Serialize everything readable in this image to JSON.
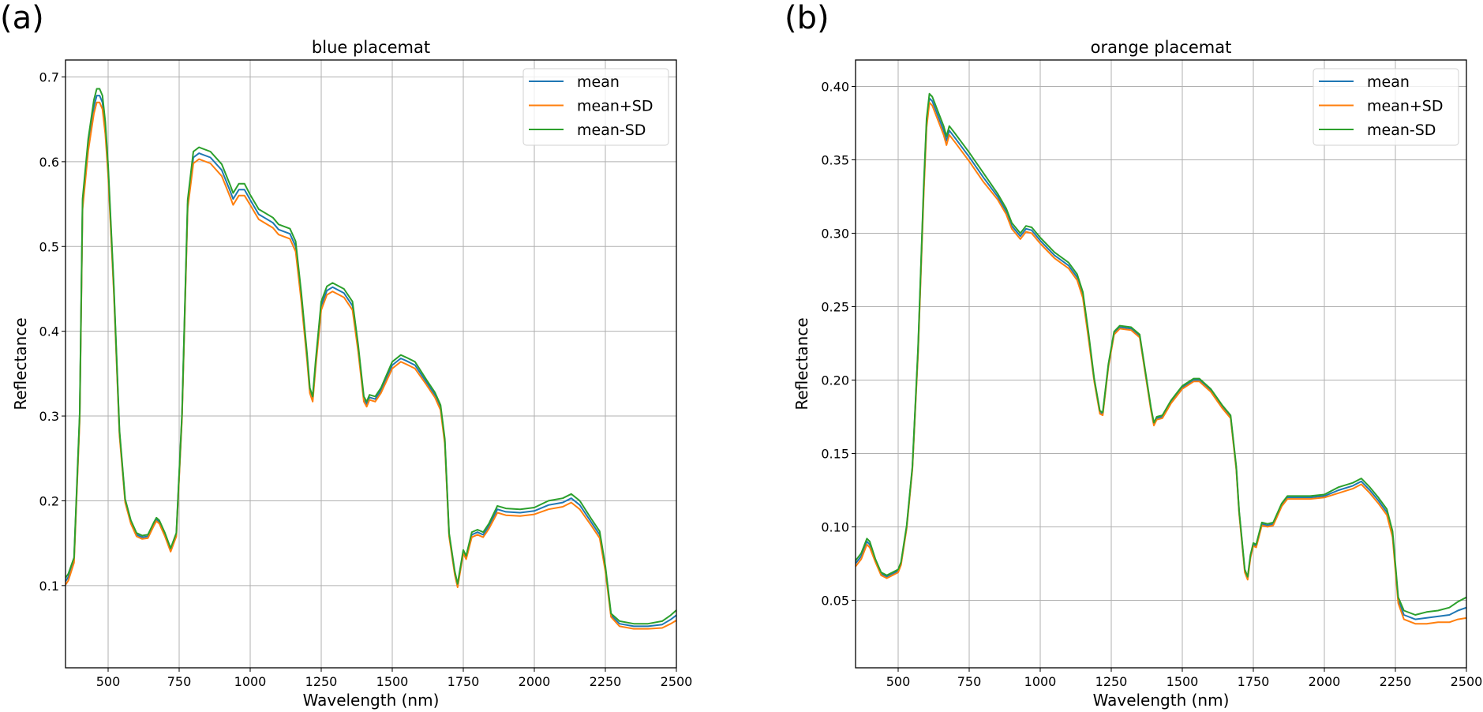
{
  "chart_data": [
    {
      "type": "line",
      "panel_label": "(a)",
      "title": "blue placemat",
      "xlabel": "Wavelength (nm)",
      "ylabel": "Reflectance",
      "xlim": [
        350,
        2500
      ],
      "ylim": [
        0.003,
        0.72
      ],
      "grid": true,
      "legend_placement": "top-right",
      "xticks": [
        500,
        750,
        1000,
        1250,
        1500,
        1750,
        2000,
        2250,
        2500
      ],
      "xtick_labels": [
        "500",
        "750",
        "1000",
        "1250",
        "1500",
        "1750",
        "2000",
        "2250",
        "2500"
      ],
      "yticks": [
        0.1,
        0.2,
        0.3,
        0.4,
        0.5,
        0.6,
        0.7
      ],
      "ytick_labels": [
        "0.1",
        "0.2",
        "0.3",
        "0.4",
        "0.5",
        "0.6",
        "0.7"
      ],
      "x": [
        350,
        360,
        380,
        400,
        410,
        430,
        450,
        460,
        470,
        480,
        490,
        500,
        520,
        540,
        560,
        580,
        600,
        620,
        640,
        660,
        670,
        680,
        700,
        720,
        740,
        760,
        780,
        800,
        820,
        860,
        900,
        930,
        940,
        960,
        980,
        1000,
        1030,
        1080,
        1100,
        1140,
        1160,
        1180,
        1200,
        1210,
        1220,
        1230,
        1250,
        1270,
        1290,
        1330,
        1360,
        1380,
        1400,
        1410,
        1420,
        1440,
        1460,
        1500,
        1530,
        1550,
        1580,
        1620,
        1650,
        1670,
        1685,
        1700,
        1720,
        1730,
        1740,
        1750,
        1760,
        1780,
        1800,
        1820,
        1840,
        1870,
        1900,
        1950,
        2000,
        2050,
        2100,
        2130,
        2160,
        2200,
        2230,
        2250,
        2270,
        2300,
        2350,
        2400,
        2450,
        2480,
        2500
      ],
      "mean": [
        0.105,
        0.11,
        0.13,
        0.3,
        0.55,
        0.62,
        0.665,
        0.678,
        0.678,
        0.67,
        0.64,
        0.59,
        0.45,
        0.28,
        0.2,
        0.175,
        0.16,
        0.157,
        0.158,
        0.172,
        0.178,
        0.175,
        0.16,
        0.142,
        0.16,
        0.3,
        0.55,
        0.605,
        0.61,
        0.605,
        0.59,
        0.565,
        0.556,
        0.567,
        0.567,
        0.555,
        0.538,
        0.528,
        0.52,
        0.515,
        0.5,
        0.44,
        0.37,
        0.33,
        0.32,
        0.36,
        0.43,
        0.448,
        0.452,
        0.445,
        0.43,
        0.38,
        0.32,
        0.314,
        0.322,
        0.32,
        0.33,
        0.36,
        0.368,
        0.365,
        0.36,
        0.34,
        0.325,
        0.31,
        0.27,
        0.16,
        0.115,
        0.1,
        0.12,
        0.14,
        0.133,
        0.16,
        0.163,
        0.16,
        0.17,
        0.19,
        0.187,
        0.186,
        0.188,
        0.195,
        0.198,
        0.203,
        0.195,
        0.175,
        0.16,
        0.12,
        0.065,
        0.055,
        0.052,
        0.052,
        0.054,
        0.06,
        0.065
      ],
      "sd": [
        0.004,
        0.004,
        0.003,
        0.004,
        0.006,
        0.007,
        0.008,
        0.008,
        0.008,
        0.008,
        0.007,
        0.006,
        0.004,
        0.003,
        0.002,
        0.002,
        0.002,
        0.002,
        0.002,
        0.002,
        0.002,
        0.002,
        0.002,
        0.002,
        0.002,
        0.003,
        0.005,
        0.007,
        0.007,
        0.007,
        0.007,
        0.007,
        0.007,
        0.007,
        0.007,
        0.006,
        0.006,
        0.006,
        0.006,
        0.006,
        0.006,
        0.005,
        0.004,
        0.003,
        0.003,
        0.004,
        0.005,
        0.005,
        0.005,
        0.005,
        0.005,
        0.004,
        0.003,
        0.003,
        0.003,
        0.003,
        0.003,
        0.004,
        0.004,
        0.004,
        0.004,
        0.003,
        0.003,
        0.003,
        0.003,
        0.002,
        0.002,
        0.002,
        0.002,
        0.002,
        0.002,
        0.003,
        0.003,
        0.003,
        0.003,
        0.004,
        0.004,
        0.004,
        0.004,
        0.005,
        0.005,
        0.005,
        0.005,
        0.004,
        0.004,
        0.003,
        0.002,
        0.003,
        0.003,
        0.003,
        0.004,
        0.005,
        0.006
      ],
      "series": [
        {
          "name": "mean",
          "color": "#1f77b4",
          "sd_factor": 0
        },
        {
          "name": "mean+SD",
          "color": "#ff7f0e",
          "sd_factor": -1
        },
        {
          "name": "mean-SD",
          "color": "#2ca02c",
          "sd_factor": 1
        }
      ]
    },
    {
      "type": "line",
      "panel_label": "(b)",
      "title": "orange placemat",
      "xlabel": "Wavelength (nm)",
      "ylabel": "Reflectance",
      "xlim": [
        350,
        2500
      ],
      "ylim": [
        0.004,
        0.418
      ],
      "grid": true,
      "legend_placement": "top-right",
      "xticks": [
        500,
        750,
        1000,
        1250,
        1500,
        1750,
        2000,
        2250,
        2500
      ],
      "xtick_labels": [
        "500",
        "750",
        "1000",
        "1250",
        "1500",
        "1750",
        "2000",
        "2250",
        "2500"
      ],
      "yticks": [
        0.05,
        0.1,
        0.15,
        0.2,
        0.25,
        0.3,
        0.35,
        0.4
      ],
      "ytick_labels": [
        "0.05",
        "0.10",
        "0.15",
        "0.20",
        "0.25",
        "0.30",
        "0.35",
        "0.40"
      ],
      "x": [
        350,
        370,
        390,
        400,
        420,
        440,
        460,
        480,
        500,
        510,
        530,
        550,
        570,
        590,
        600,
        610,
        620,
        640,
        660,
        670,
        680,
        700,
        750,
        800,
        850,
        880,
        900,
        930,
        950,
        970,
        1000,
        1050,
        1100,
        1130,
        1150,
        1170,
        1190,
        1210,
        1220,
        1240,
        1260,
        1280,
        1320,
        1350,
        1370,
        1390,
        1400,
        1410,
        1430,
        1460,
        1500,
        1540,
        1560,
        1600,
        1640,
        1670,
        1690,
        1700,
        1720,
        1730,
        1740,
        1750,
        1760,
        1780,
        1800,
        1820,
        1850,
        1870,
        1900,
        1950,
        2000,
        2050,
        2100,
        2130,
        2160,
        2190,
        2220,
        2240,
        2260,
        2280,
        2320,
        2360,
        2400,
        2440,
        2470,
        2500
      ],
      "mean": [
        0.075,
        0.08,
        0.09,
        0.088,
        0.077,
        0.068,
        0.066,
        0.068,
        0.07,
        0.075,
        0.1,
        0.14,
        0.22,
        0.33,
        0.375,
        0.392,
        0.39,
        0.38,
        0.37,
        0.363,
        0.37,
        0.365,
        0.352,
        0.338,
        0.325,
        0.315,
        0.305,
        0.298,
        0.303,
        0.302,
        0.295,
        0.285,
        0.278,
        0.27,
        0.258,
        0.23,
        0.2,
        0.178,
        0.177,
        0.21,
        0.232,
        0.236,
        0.235,
        0.23,
        0.205,
        0.18,
        0.17,
        0.174,
        0.175,
        0.185,
        0.195,
        0.2,
        0.2,
        0.193,
        0.182,
        0.175,
        0.14,
        0.11,
        0.07,
        0.065,
        0.08,
        0.088,
        0.087,
        0.102,
        0.101,
        0.102,
        0.115,
        0.12,
        0.12,
        0.12,
        0.121,
        0.125,
        0.128,
        0.131,
        0.125,
        0.118,
        0.11,
        0.095,
        0.05,
        0.04,
        0.037,
        0.038,
        0.039,
        0.04,
        0.043,
        0.045
      ],
      "sd": [
        0.002,
        0.002,
        0.002,
        0.002,
        0.001,
        0.001,
        0.001,
        0.001,
        0.001,
        0.001,
        0.001,
        0.001,
        0.002,
        0.003,
        0.003,
        0.003,
        0.003,
        0.003,
        0.003,
        0.003,
        0.003,
        0.003,
        0.003,
        0.003,
        0.002,
        0.002,
        0.002,
        0.002,
        0.002,
        0.002,
        0.002,
        0.002,
        0.002,
        0.002,
        0.002,
        0.002,
        0.001,
        0.001,
        0.001,
        0.001,
        0.001,
        0.001,
        0.001,
        0.001,
        0.001,
        0.001,
        0.001,
        0.001,
        0.001,
        0.001,
        0.001,
        0.001,
        0.001,
        0.001,
        0.001,
        0.001,
        0.001,
        0.001,
        0.001,
        0.001,
        0.001,
        0.001,
        0.001,
        0.001,
        0.001,
        0.001,
        0.001,
        0.001,
        0.001,
        0.001,
        0.001,
        0.002,
        0.002,
        0.002,
        0.002,
        0.002,
        0.002,
        0.002,
        0.002,
        0.003,
        0.003,
        0.004,
        0.004,
        0.005,
        0.006,
        0.007
      ],
      "series": [
        {
          "name": "mean",
          "color": "#1f77b4",
          "sd_factor": 0
        },
        {
          "name": "mean+SD",
          "color": "#ff7f0e",
          "sd_factor": -1
        },
        {
          "name": "mean-SD",
          "color": "#2ca02c",
          "sd_factor": 1
        }
      ]
    }
  ]
}
